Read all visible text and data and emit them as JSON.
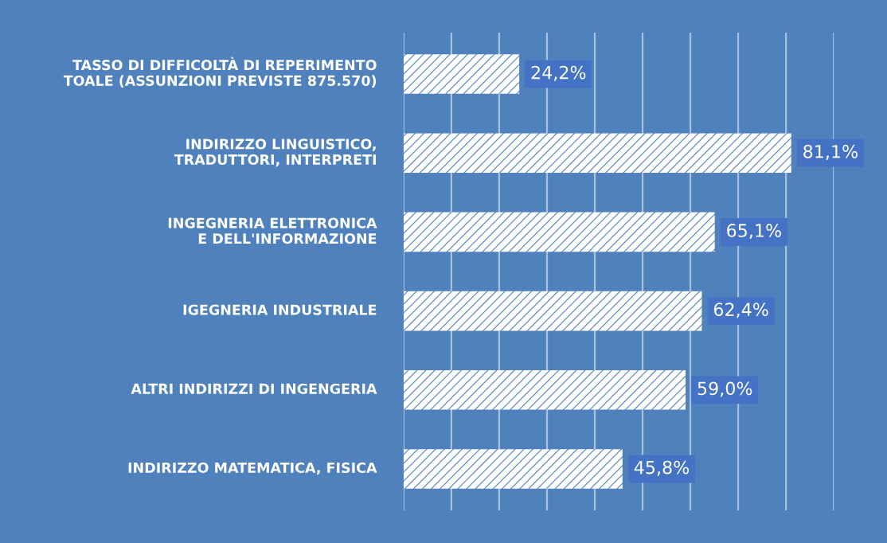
{
  "chart_data": {
    "type": "bar",
    "orientation": "horizontal",
    "categories": [
      "TASSO DI DIFFICOLTÀ DI REPERIMENTO TOALE (ASSUNZIONI PREVISTE 875.570)",
      "INDIRIZZO LINGUISTICO, TRADUTTORI, INTERPRETI",
      "INGEGNERIA ELETTRONICA E DELL'INFORMAZIONE",
      "IGEGNERIA INDUSTRIALE",
      "ALTRI INDIRIZZI DI INGENGERIA",
      "INDIRIZZO MATEMATICA, FISICA"
    ],
    "values": [
      24.2,
      81.1,
      65.1,
      62.4,
      59.0,
      45.8
    ],
    "value_labels": [
      "24,2%",
      "81,1%",
      "65,1%",
      "62,4%",
      "59,0%",
      "45,8%"
    ],
    "color": "#ffffff",
    "xlim": [
      0,
      90
    ],
    "xticks": [
      {
        "value": 0,
        "label": null
      },
      {
        "value": 10,
        "label": null
      },
      {
        "value": 20,
        "label": null
      },
      {
        "value": 30,
        "label": null
      },
      {
        "value": 40,
        "label": null
      },
      {
        "value": 50,
        "label": null
      },
      {
        "value": 60,
        "label": null
      },
      {
        "value": 70,
        "label": null
      },
      {
        "value": 80,
        "label": null
      },
      {
        "value": 90,
        "label": null
      }
    ],
    "grid": "x"
  }
}
